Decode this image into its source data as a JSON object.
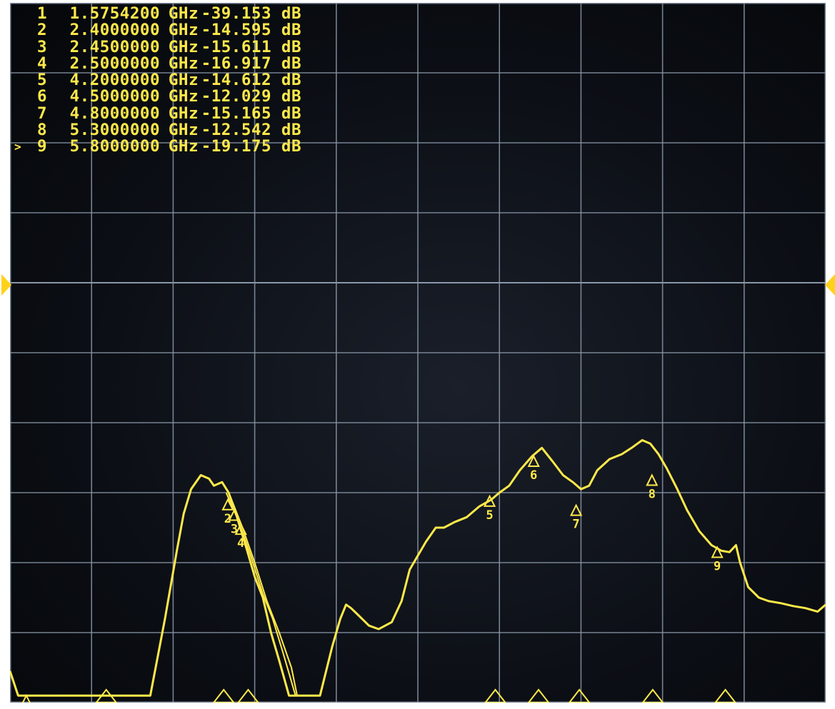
{
  "display": {
    "background": "#0b0e14",
    "grid_color": "#8a97a8",
    "trace_color": "#ffe94a",
    "marker_color": "#ffe94a"
  },
  "marker_table": {
    "active_indicator": ">",
    "rows": [
      {
        "id": "1",
        "freq": "1.5754200",
        "freq_unit": "GHz",
        "value": "-39.153",
        "value_unit": "dB",
        "active": false
      },
      {
        "id": "2",
        "freq": "2.4000000",
        "freq_unit": "GHz",
        "value": "-14.595",
        "value_unit": "dB",
        "active": false
      },
      {
        "id": "3",
        "freq": "2.4500000",
        "freq_unit": "GHz",
        "value": "-15.611",
        "value_unit": "dB",
        "active": false
      },
      {
        "id": "4",
        "freq": "2.5000000",
        "freq_unit": "GHz",
        "value": "-16.917",
        "value_unit": "dB",
        "active": false
      },
      {
        "id": "5",
        "freq": "4.2000000",
        "freq_unit": "GHz",
        "value": "-14.612",
        "value_unit": "dB",
        "active": false
      },
      {
        "id": "6",
        "freq": "4.5000000",
        "freq_unit": "GHz",
        "value": "-12.029",
        "value_unit": "dB",
        "active": false
      },
      {
        "id": "7",
        "freq": "4.8000000",
        "freq_unit": "GHz",
        "value": "-15.165",
        "value_unit": "dB",
        "active": false
      },
      {
        "id": "8",
        "freq": "5.3000000",
        "freq_unit": "GHz",
        "value": "-12.542",
        "value_unit": "dB",
        "active": false
      },
      {
        "id": "9",
        "freq": "5.8000000",
        "freq_unit": "GHz",
        "value": "-19.175",
        "value_unit": "dB",
        "active": true
      }
    ]
  },
  "chart_data": {
    "type": "line",
    "grid": true,
    "grid_divisions": {
      "x": 10,
      "y": 10
    },
    "series": [
      {
        "points": [
          [
            0.0,
            0.955
          ],
          [
            0.01,
            0.99
          ],
          [
            0.08,
            0.99
          ],
          [
            0.172,
            0.99
          ],
          [
            0.19,
            0.88
          ],
          [
            0.205,
            0.78
          ],
          [
            0.213,
            0.73
          ],
          [
            0.222,
            0.695
          ],
          [
            0.234,
            0.675
          ],
          [
            0.244,
            0.68
          ],
          [
            0.25,
            0.69
          ],
          [
            0.26,
            0.685
          ],
          [
            0.268,
            0.7
          ],
          [
            0.277,
            0.73
          ],
          [
            0.29,
            0.78
          ],
          [
            0.3,
            0.82
          ],
          [
            0.31,
            0.85
          ],
          [
            0.32,
            0.9
          ],
          [
            0.33,
            0.94
          ],
          [
            0.342,
            0.99
          ],
          [
            0.38,
            0.99
          ],
          [
            0.395,
            0.92
          ],
          [
            0.405,
            0.88
          ],
          [
            0.412,
            0.86
          ],
          [
            0.418,
            0.865
          ],
          [
            0.427,
            0.875
          ],
          [
            0.44,
            0.89
          ],
          [
            0.452,
            0.895
          ],
          [
            0.468,
            0.885
          ],
          [
            0.48,
            0.855
          ],
          [
            0.49,
            0.81
          ],
          [
            0.51,
            0.77
          ],
          [
            0.522,
            0.75
          ],
          [
            0.532,
            0.75
          ],
          [
            0.545,
            0.742
          ],
          [
            0.56,
            0.735
          ],
          [
            0.575,
            0.72
          ],
          [
            0.59,
            0.71
          ],
          [
            0.6,
            0.7
          ],
          [
            0.612,
            0.69
          ],
          [
            0.625,
            0.668
          ],
          [
            0.64,
            0.648
          ],
          [
            0.652,
            0.636
          ],
          [
            0.665,
            0.655
          ],
          [
            0.678,
            0.675
          ],
          [
            0.69,
            0.685
          ],
          [
            0.7,
            0.695
          ],
          [
            0.71,
            0.69
          ],
          [
            0.72,
            0.668
          ],
          [
            0.735,
            0.652
          ],
          [
            0.75,
            0.645
          ],
          [
            0.762,
            0.636
          ],
          [
            0.775,
            0.625
          ],
          [
            0.785,
            0.63
          ],
          [
            0.795,
            0.645
          ],
          [
            0.805,
            0.665
          ],
          [
            0.818,
            0.695
          ],
          [
            0.83,
            0.725
          ],
          [
            0.845,
            0.755
          ],
          [
            0.86,
            0.775
          ],
          [
            0.872,
            0.783
          ],
          [
            0.882,
            0.785
          ],
          [
            0.89,
            0.775
          ],
          [
            0.895,
            0.8
          ],
          [
            0.905,
            0.835
          ],
          [
            0.918,
            0.85
          ],
          [
            0.93,
            0.855
          ],
          [
            0.945,
            0.858
          ],
          [
            0.96,
            0.862
          ],
          [
            0.975,
            0.865
          ],
          [
            0.99,
            0.87
          ],
          [
            1.0,
            0.86
          ]
        ]
      },
      {
        "points": [
          [
            0.265,
            0.7
          ],
          [
            0.28,
            0.74
          ],
          [
            0.295,
            0.79
          ],
          [
            0.31,
            0.845
          ],
          [
            0.322,
            0.88
          ],
          [
            0.335,
            0.93
          ],
          [
            0.35,
            0.99
          ]
        ]
      },
      {
        "points": [
          [
            0.27,
            0.705
          ],
          [
            0.285,
            0.75
          ],
          [
            0.3,
            0.8
          ],
          [
            0.315,
            0.855
          ],
          [
            0.33,
            0.9
          ],
          [
            0.345,
            0.95
          ],
          [
            0.352,
            0.99
          ]
        ]
      }
    ],
    "markers": [
      {
        "id": "1",
        "x": 0.02,
        "y": 0.99
      },
      {
        "id": "2",
        "x": 0.267,
        "y": 0.71
      },
      {
        "id": "3",
        "x": 0.275,
        "y": 0.725
      },
      {
        "id": "4",
        "x": 0.283,
        "y": 0.745
      },
      {
        "id": "5",
        "x": 0.588,
        "y": 0.705
      },
      {
        "id": "6",
        "x": 0.642,
        "y": 0.648
      },
      {
        "id": "7",
        "x": 0.694,
        "y": 0.718
      },
      {
        "id": "8",
        "x": 0.787,
        "y": 0.675
      },
      {
        "id": "9",
        "x": 0.867,
        "y": 0.778
      }
    ],
    "bottom_markers_x": [
      0.118,
      0.262,
      0.292,
      0.595,
      0.648,
      0.698,
      0.788,
      0.877
    ],
    "reference_level_y": 0.4
  }
}
